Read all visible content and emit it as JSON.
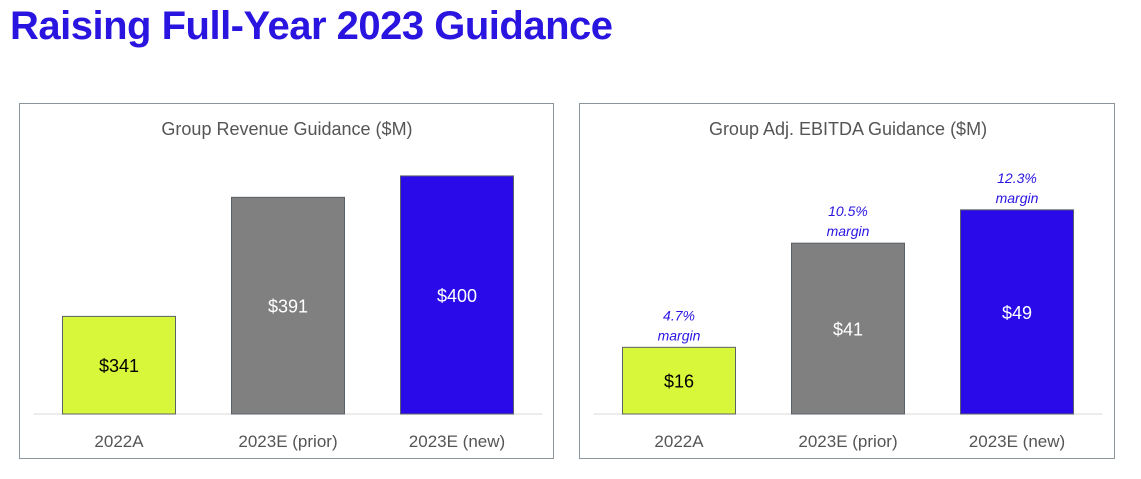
{
  "page": {
    "title": "Raising Full-Year 2023 Guidance"
  },
  "colors": {
    "title": "#2a14e0",
    "bar_2022A": "#d8f73b",
    "bar_prior": "#808080",
    "bar_new": "#2a0ae8",
    "margin_text": "#2a14e0"
  },
  "chart_data": [
    {
      "type": "bar",
      "title": "Group Revenue Guidance ($M)",
      "categories": [
        "2022A",
        "2023E (prior)",
        "2023E (new)"
      ],
      "values": [
        341,
        391,
        400
      ],
      "value_labels": [
        "$341",
        "$391",
        "$400"
      ],
      "axis_min": 300,
      "axis_max": 405,
      "annotations": [],
      "grid": false,
      "legend": "none"
    },
    {
      "type": "bar",
      "title": "Group Adj. EBITDA Guidance ($M)",
      "categories": [
        "2022A",
        "2023E (prior)",
        "2023E (new)"
      ],
      "values": [
        16,
        41,
        49
      ],
      "value_labels": [
        "$16",
        "$41",
        "$49"
      ],
      "axis_min": 0,
      "axis_max": 60,
      "annotations": [
        {
          "pct": "4.7%",
          "text": "margin"
        },
        {
          "pct": "10.5%",
          "text": "margin"
        },
        {
          "pct": "12.3%",
          "text": "margin"
        }
      ],
      "grid": false,
      "legend": "none"
    }
  ]
}
